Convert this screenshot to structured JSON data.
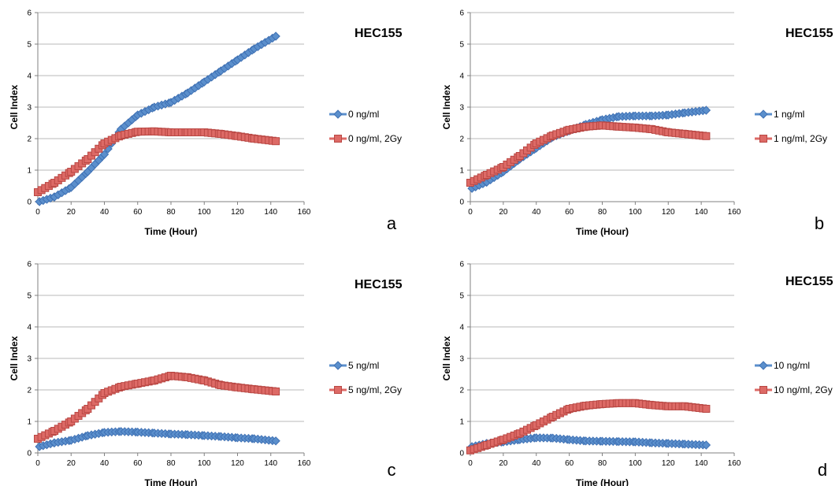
{
  "colors": {
    "blue": "#5b8fcc",
    "blue_edge": "#3f71b4",
    "red": "#dd6a66",
    "red_edge": "#b94743",
    "grid": "#b8b8b8"
  },
  "chart_data": [
    {
      "type": "line",
      "panel": "a",
      "title": "HEC155",
      "xlabel": "Time (Hour)",
      "ylabel": "Cell Index",
      "xlim": [
        0,
        160
      ],
      "ylim": [
        0,
        6
      ],
      "x_ticks": [
        "0",
        "20",
        "40",
        "60",
        "80",
        "100",
        "120",
        "140",
        "160"
      ],
      "y_ticks": [
        "0",
        "1",
        "2",
        "3",
        "4",
        "5",
        "6"
      ],
      "grid": "horizontal",
      "legend_position": "right",
      "series": [
        {
          "name": "0 ng/ml",
          "marker": "diamond",
          "color": "blue",
          "points": [
            [
              1,
              0.0
            ],
            [
              10,
              0.15
            ],
            [
              20,
              0.45
            ],
            [
              30,
              0.95
            ],
            [
              40,
              1.5
            ],
            [
              50,
              2.3
            ],
            [
              60,
              2.75
            ],
            [
              70,
              3.0
            ],
            [
              80,
              3.15
            ],
            [
              90,
              3.45
            ],
            [
              100,
              3.8
            ],
            [
              110,
              4.15
            ],
            [
              120,
              4.5
            ],
            [
              130,
              4.85
            ],
            [
              143,
              5.25
            ]
          ]
        },
        {
          "name": "0 ng/ml, 2Gy",
          "marker": "square",
          "color": "red",
          "points": [
            [
              0,
              0.3
            ],
            [
              10,
              0.6
            ],
            [
              20,
              0.95
            ],
            [
              30,
              1.35
            ],
            [
              40,
              1.85
            ],
            [
              50,
              2.1
            ],
            [
              60,
              2.22
            ],
            [
              70,
              2.23
            ],
            [
              80,
              2.2
            ],
            [
              90,
              2.2
            ],
            [
              100,
              2.2
            ],
            [
              110,
              2.15
            ],
            [
              120,
              2.08
            ],
            [
              130,
              2.0
            ],
            [
              143,
              1.92
            ]
          ]
        }
      ]
    },
    {
      "type": "line",
      "panel": "b",
      "title": "HEC155",
      "xlabel": "Time (Hour)",
      "ylabel": "Cell Index",
      "xlim": [
        0,
        160
      ],
      "ylim": [
        0,
        6
      ],
      "x_ticks": [
        "0",
        "20",
        "40",
        "60",
        "80",
        "100",
        "120",
        "140",
        "160"
      ],
      "y_ticks": [
        "0",
        "1",
        "2",
        "3",
        "4",
        "5",
        "6"
      ],
      "grid": "horizontal",
      "legend_position": "right",
      "series": [
        {
          "name": "1 ng/ml",
          "marker": "diamond",
          "color": "blue",
          "points": [
            [
              1,
              0.42
            ],
            [
              10,
              0.62
            ],
            [
              20,
              0.95
            ],
            [
              30,
              1.35
            ],
            [
              40,
              1.7
            ],
            [
              50,
              2.05
            ],
            [
              60,
              2.25
            ],
            [
              70,
              2.45
            ],
            [
              80,
              2.6
            ],
            [
              90,
              2.7
            ],
            [
              100,
              2.72
            ],
            [
              110,
              2.72
            ],
            [
              120,
              2.75
            ],
            [
              130,
              2.82
            ],
            [
              143,
              2.9
            ]
          ]
        },
        {
          "name": "1 ng/ml, 2Gy",
          "marker": "square",
          "color": "red",
          "points": [
            [
              0,
              0.6
            ],
            [
              10,
              0.85
            ],
            [
              20,
              1.1
            ],
            [
              30,
              1.45
            ],
            [
              40,
              1.85
            ],
            [
              50,
              2.1
            ],
            [
              60,
              2.28
            ],
            [
              70,
              2.38
            ],
            [
              80,
              2.42
            ],
            [
              90,
              2.38
            ],
            [
              100,
              2.35
            ],
            [
              110,
              2.3
            ],
            [
              120,
              2.2
            ],
            [
              130,
              2.15
            ],
            [
              143,
              2.08
            ]
          ]
        }
      ]
    },
    {
      "type": "line",
      "panel": "c",
      "title": "HEC155",
      "xlabel": "Time (Hour)",
      "ylabel": "Cell Index",
      "xlim": [
        0,
        160
      ],
      "ylim": [
        0,
        6
      ],
      "x_ticks": [
        "0",
        "20",
        "40",
        "60",
        "80",
        "100",
        "120",
        "140",
        "160"
      ],
      "y_ticks": [
        "0",
        "1",
        "2",
        "3",
        "4",
        "5",
        "6"
      ],
      "grid": "horizontal",
      "legend_position": "right",
      "series": [
        {
          "name": "5 ng/ml",
          "marker": "diamond",
          "color": "blue",
          "points": [
            [
              1,
              0.2
            ],
            [
              10,
              0.32
            ],
            [
              20,
              0.4
            ],
            [
              30,
              0.55
            ],
            [
              40,
              0.65
            ],
            [
              50,
              0.68
            ],
            [
              60,
              0.66
            ],
            [
              70,
              0.63
            ],
            [
              80,
              0.6
            ],
            [
              90,
              0.58
            ],
            [
              100,
              0.55
            ],
            [
              110,
              0.52
            ],
            [
              120,
              0.48
            ],
            [
              130,
              0.45
            ],
            [
              143,
              0.38
            ]
          ]
        },
        {
          "name": "5 ng/ml, 2Gy",
          "marker": "square",
          "color": "red",
          "points": [
            [
              0,
              0.45
            ],
            [
              10,
              0.7
            ],
            [
              20,
              1.0
            ],
            [
              30,
              1.4
            ],
            [
              40,
              1.9
            ],
            [
              50,
              2.1
            ],
            [
              60,
              2.2
            ],
            [
              70,
              2.3
            ],
            [
              80,
              2.45
            ],
            [
              90,
              2.4
            ],
            [
              100,
              2.3
            ],
            [
              110,
              2.15
            ],
            [
              120,
              2.08
            ],
            [
              130,
              2.02
            ],
            [
              143,
              1.95
            ]
          ]
        }
      ]
    },
    {
      "type": "line",
      "panel": "d",
      "title": "HEC155",
      "xlabel": "Time (Hour)",
      "ylabel": "Cell Index",
      "xlim": [
        0,
        160
      ],
      "ylim": [
        0,
        6
      ],
      "x_ticks": [
        "0",
        "20",
        "40",
        "60",
        "80",
        "100",
        "120",
        "140",
        "160"
      ],
      "y_ticks": [
        "0",
        "1",
        "2",
        "3",
        "4",
        "5",
        "6"
      ],
      "grid": "horizontal",
      "legend_position": "right",
      "series": [
        {
          "name": "10 ng/ml",
          "marker": "diamond",
          "color": "blue",
          "points": [
            [
              1,
              0.2
            ],
            [
              10,
              0.3
            ],
            [
              20,
              0.35
            ],
            [
              30,
              0.42
            ],
            [
              40,
              0.48
            ],
            [
              50,
              0.47
            ],
            [
              60,
              0.42
            ],
            [
              70,
              0.38
            ],
            [
              80,
              0.37
            ],
            [
              90,
              0.36
            ],
            [
              100,
              0.35
            ],
            [
              110,
              0.32
            ],
            [
              120,
              0.3
            ],
            [
              130,
              0.28
            ],
            [
              143,
              0.25
            ]
          ]
        },
        {
          "name": "10 ng/ml, 2Gy",
          "marker": "square",
          "color": "red",
          "points": [
            [
              0,
              0.08
            ],
            [
              10,
              0.25
            ],
            [
              20,
              0.42
            ],
            [
              30,
              0.62
            ],
            [
              40,
              0.88
            ],
            [
              50,
              1.15
            ],
            [
              60,
              1.4
            ],
            [
              70,
              1.5
            ],
            [
              80,
              1.55
            ],
            [
              90,
              1.58
            ],
            [
              100,
              1.58
            ],
            [
              110,
              1.52
            ],
            [
              120,
              1.48
            ],
            [
              130,
              1.48
            ],
            [
              143,
              1.4
            ]
          ]
        }
      ]
    }
  ]
}
